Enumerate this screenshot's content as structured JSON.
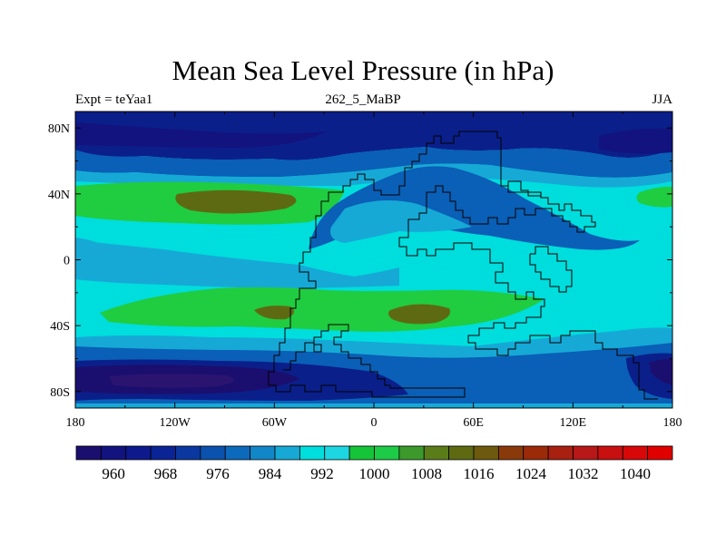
{
  "header": {
    "title": "Mean Sea Level Pressure (in hPa)",
    "left_label": "Expt = teYaa1",
    "center_label": "262_5_MaBP",
    "right_label": "JJA"
  },
  "map": {
    "lon_range": [
      -180,
      180
    ],
    "lat_range": [
      -90,
      90
    ],
    "x_ticks": [
      {
        "lon": -180,
        "label": "180"
      },
      {
        "lon": -120,
        "label": "120W"
      },
      {
        "lon": -60,
        "label": "60W"
      },
      {
        "lon": 0,
        "label": "0"
      },
      {
        "lon": 60,
        "label": "60E"
      },
      {
        "lon": 120,
        "label": "120E"
      },
      {
        "lon": 180,
        "label": "180"
      }
    ],
    "y_ticks": [
      {
        "lat": 80,
        "label": "80N"
      },
      {
        "lat": 40,
        "label": "40N"
      },
      {
        "lat": 0,
        "label": "0"
      },
      {
        "lat": -40,
        "label": "40S"
      },
      {
        "lat": -80,
        "label": "80S"
      }
    ]
  },
  "colorbar": {
    "labels": [
      "960",
      "968",
      "976",
      "984",
      "992",
      "1000",
      "1008",
      "1016",
      "1024",
      "1032",
      "1040"
    ],
    "colors": [
      "#1a0f6e",
      "#12137f",
      "#0e1a8c",
      "#0a2495",
      "#0a38a0",
      "#0a52ad",
      "#0b6abb",
      "#1187c8",
      "#16a9d6",
      "#00dddd",
      "#1cd7e2",
      "#16c43a",
      "#1ecb46",
      "#3c9a2c",
      "#5a7d1a",
      "#5e6a12",
      "#6e5a0e",
      "#8a3a0a",
      "#9a2a08",
      "#a82010",
      "#b81818",
      "#c81010",
      "#d80808",
      "#e00000"
    ]
  },
  "colors": {
    "ocean_dark": "#0b1f8a",
    "ocean_blue": "#0a5fb6",
    "light_blue": "#16a9d6",
    "cyan": "#00dddd",
    "green": "#20cc40",
    "olive": "#5e6a12",
    "darkest": "#1a0f6e"
  }
}
